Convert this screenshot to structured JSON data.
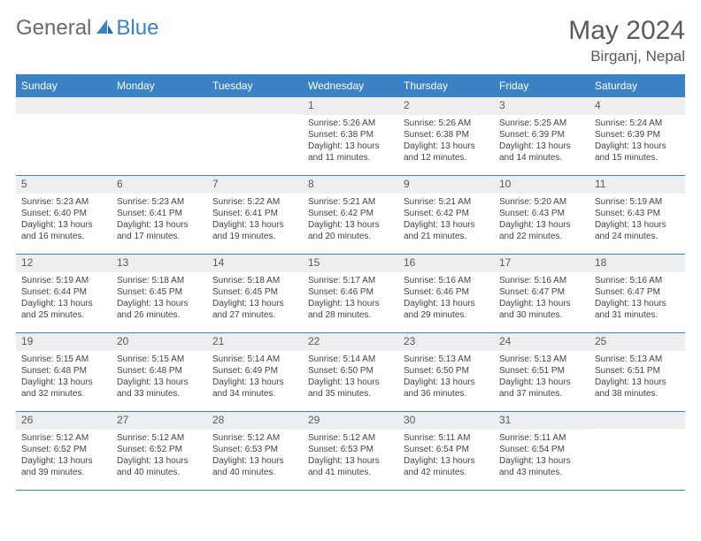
{
  "brand": {
    "general": "General",
    "blue": "Blue"
  },
  "title": "May 2024",
  "location": "Birganj, Nepal",
  "colors": {
    "header_bg": "#3b82c4",
    "header_text": "#ffffff",
    "daynum_bg": "#eceeef",
    "text": "#5a5a5a",
    "body_text": "#444444",
    "border": "#3b82c4"
  },
  "day_names": [
    "Sunday",
    "Monday",
    "Tuesday",
    "Wednesday",
    "Thursday",
    "Friday",
    "Saturday"
  ],
  "weeks": [
    [
      {
        "n": "",
        "sr": "",
        "ss": "",
        "dl": ""
      },
      {
        "n": "",
        "sr": "",
        "ss": "",
        "dl": ""
      },
      {
        "n": "",
        "sr": "",
        "ss": "",
        "dl": ""
      },
      {
        "n": "1",
        "sr": "Sunrise: 5:26 AM",
        "ss": "Sunset: 6:38 PM",
        "dl": "Daylight: 13 hours and 11 minutes."
      },
      {
        "n": "2",
        "sr": "Sunrise: 5:26 AM",
        "ss": "Sunset: 6:38 PM",
        "dl": "Daylight: 13 hours and 12 minutes."
      },
      {
        "n": "3",
        "sr": "Sunrise: 5:25 AM",
        "ss": "Sunset: 6:39 PM",
        "dl": "Daylight: 13 hours and 14 minutes."
      },
      {
        "n": "4",
        "sr": "Sunrise: 5:24 AM",
        "ss": "Sunset: 6:39 PM",
        "dl": "Daylight: 13 hours and 15 minutes."
      }
    ],
    [
      {
        "n": "5",
        "sr": "Sunrise: 5:23 AM",
        "ss": "Sunset: 6:40 PM",
        "dl": "Daylight: 13 hours and 16 minutes."
      },
      {
        "n": "6",
        "sr": "Sunrise: 5:23 AM",
        "ss": "Sunset: 6:41 PM",
        "dl": "Daylight: 13 hours and 17 minutes."
      },
      {
        "n": "7",
        "sr": "Sunrise: 5:22 AM",
        "ss": "Sunset: 6:41 PM",
        "dl": "Daylight: 13 hours and 19 minutes."
      },
      {
        "n": "8",
        "sr": "Sunrise: 5:21 AM",
        "ss": "Sunset: 6:42 PM",
        "dl": "Daylight: 13 hours and 20 minutes."
      },
      {
        "n": "9",
        "sr": "Sunrise: 5:21 AM",
        "ss": "Sunset: 6:42 PM",
        "dl": "Daylight: 13 hours and 21 minutes."
      },
      {
        "n": "10",
        "sr": "Sunrise: 5:20 AM",
        "ss": "Sunset: 6:43 PM",
        "dl": "Daylight: 13 hours and 22 minutes."
      },
      {
        "n": "11",
        "sr": "Sunrise: 5:19 AM",
        "ss": "Sunset: 6:43 PM",
        "dl": "Daylight: 13 hours and 24 minutes."
      }
    ],
    [
      {
        "n": "12",
        "sr": "Sunrise: 5:19 AM",
        "ss": "Sunset: 6:44 PM",
        "dl": "Daylight: 13 hours and 25 minutes."
      },
      {
        "n": "13",
        "sr": "Sunrise: 5:18 AM",
        "ss": "Sunset: 6:45 PM",
        "dl": "Daylight: 13 hours and 26 minutes."
      },
      {
        "n": "14",
        "sr": "Sunrise: 5:18 AM",
        "ss": "Sunset: 6:45 PM",
        "dl": "Daylight: 13 hours and 27 minutes."
      },
      {
        "n": "15",
        "sr": "Sunrise: 5:17 AM",
        "ss": "Sunset: 6:46 PM",
        "dl": "Daylight: 13 hours and 28 minutes."
      },
      {
        "n": "16",
        "sr": "Sunrise: 5:16 AM",
        "ss": "Sunset: 6:46 PM",
        "dl": "Daylight: 13 hours and 29 minutes."
      },
      {
        "n": "17",
        "sr": "Sunrise: 5:16 AM",
        "ss": "Sunset: 6:47 PM",
        "dl": "Daylight: 13 hours and 30 minutes."
      },
      {
        "n": "18",
        "sr": "Sunrise: 5:16 AM",
        "ss": "Sunset: 6:47 PM",
        "dl": "Daylight: 13 hours and 31 minutes."
      }
    ],
    [
      {
        "n": "19",
        "sr": "Sunrise: 5:15 AM",
        "ss": "Sunset: 6:48 PM",
        "dl": "Daylight: 13 hours and 32 minutes."
      },
      {
        "n": "20",
        "sr": "Sunrise: 5:15 AM",
        "ss": "Sunset: 6:48 PM",
        "dl": "Daylight: 13 hours and 33 minutes."
      },
      {
        "n": "21",
        "sr": "Sunrise: 5:14 AM",
        "ss": "Sunset: 6:49 PM",
        "dl": "Daylight: 13 hours and 34 minutes."
      },
      {
        "n": "22",
        "sr": "Sunrise: 5:14 AM",
        "ss": "Sunset: 6:50 PM",
        "dl": "Daylight: 13 hours and 35 minutes."
      },
      {
        "n": "23",
        "sr": "Sunrise: 5:13 AM",
        "ss": "Sunset: 6:50 PM",
        "dl": "Daylight: 13 hours and 36 minutes."
      },
      {
        "n": "24",
        "sr": "Sunrise: 5:13 AM",
        "ss": "Sunset: 6:51 PM",
        "dl": "Daylight: 13 hours and 37 minutes."
      },
      {
        "n": "25",
        "sr": "Sunrise: 5:13 AM",
        "ss": "Sunset: 6:51 PM",
        "dl": "Daylight: 13 hours and 38 minutes."
      }
    ],
    [
      {
        "n": "26",
        "sr": "Sunrise: 5:12 AM",
        "ss": "Sunset: 6:52 PM",
        "dl": "Daylight: 13 hours and 39 minutes."
      },
      {
        "n": "27",
        "sr": "Sunrise: 5:12 AM",
        "ss": "Sunset: 6:52 PM",
        "dl": "Daylight: 13 hours and 40 minutes."
      },
      {
        "n": "28",
        "sr": "Sunrise: 5:12 AM",
        "ss": "Sunset: 6:53 PM",
        "dl": "Daylight: 13 hours and 40 minutes."
      },
      {
        "n": "29",
        "sr": "Sunrise: 5:12 AM",
        "ss": "Sunset: 6:53 PM",
        "dl": "Daylight: 13 hours and 41 minutes."
      },
      {
        "n": "30",
        "sr": "Sunrise: 5:11 AM",
        "ss": "Sunset: 6:54 PM",
        "dl": "Daylight: 13 hours and 42 minutes."
      },
      {
        "n": "31",
        "sr": "Sunrise: 5:11 AM",
        "ss": "Sunset: 6:54 PM",
        "dl": "Daylight: 13 hours and 43 minutes."
      },
      {
        "n": "",
        "sr": "",
        "ss": "",
        "dl": ""
      }
    ]
  ]
}
